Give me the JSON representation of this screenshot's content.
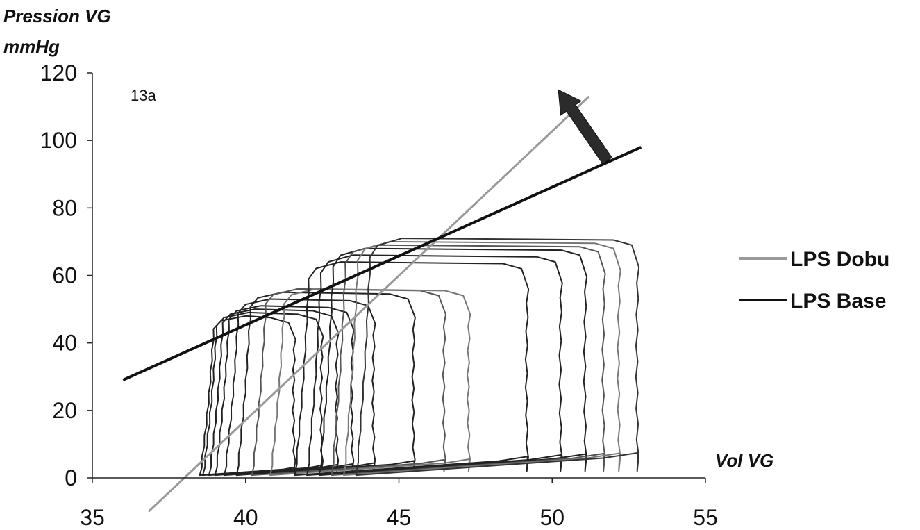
{
  "chart_data": {
    "type": "line",
    "title": "",
    "ylabel_line1": "Pression VG",
    "ylabel_line2": "mmHg",
    "xlabel": "Vol VG",
    "annotation": "13a",
    "xlim": [
      35,
      55
    ],
    "ylim": [
      0,
      120
    ],
    "x_ticks": [
      35,
      40,
      45,
      50,
      55
    ],
    "y_ticks": [
      0,
      20,
      40,
      60,
      80,
      100,
      120
    ],
    "legend_position": "right",
    "series": [
      {
        "name": "LPS Dobu",
        "color": "#999999",
        "style": "line",
        "x": [
          38.0,
          51.2
        ],
        "y": [
          0,
          113
        ]
      },
      {
        "name": "LPS Base",
        "color": "#111111",
        "style": "line",
        "x": [
          36.0,
          52.9
        ],
        "y": [
          29,
          98
        ]
      }
    ],
    "loops": [
      {
        "xl": 38.5,
        "xr": 41.6,
        "ptop": 48,
        "color": "#222222"
      },
      {
        "xl": 38.6,
        "xr": 42.5,
        "ptop": 49,
        "color": "#222222"
      },
      {
        "xl": 38.8,
        "xr": 43.0,
        "ptop": 50,
        "color": "#222222"
      },
      {
        "xl": 39.0,
        "xr": 43.5,
        "ptop": 51,
        "color": "#222222"
      },
      {
        "xl": 39.3,
        "xr": 44.2,
        "ptop": 53,
        "color": "#222222"
      },
      {
        "xl": 39.7,
        "xr": 45.5,
        "ptop": 55,
        "color": "#222222"
      },
      {
        "xl": 40.2,
        "xr": 46.5,
        "ptop": 56,
        "color": "#555555"
      },
      {
        "xl": 40.8,
        "xr": 47.3,
        "ptop": 56,
        "color": "#777777"
      },
      {
        "xl": 41.6,
        "xr": 49.2,
        "ptop": 64,
        "color": "#222222"
      },
      {
        "xl": 42.0,
        "xr": 50.3,
        "ptop": 66,
        "color": "#222222"
      },
      {
        "xl": 42.4,
        "xr": 51.1,
        "ptop": 68,
        "color": "#222222"
      },
      {
        "xl": 42.8,
        "xr": 51.7,
        "ptop": 69,
        "color": "#555555"
      },
      {
        "xl": 43.2,
        "xr": 52.2,
        "ptop": 70,
        "color": "#777777"
      },
      {
        "xl": 43.6,
        "xr": 52.8,
        "ptop": 71,
        "color": "#333333"
      }
    ],
    "arrow": {
      "x0": 51.8,
      "y0": 94,
      "x1": 50.2,
      "y1": 115
    }
  }
}
